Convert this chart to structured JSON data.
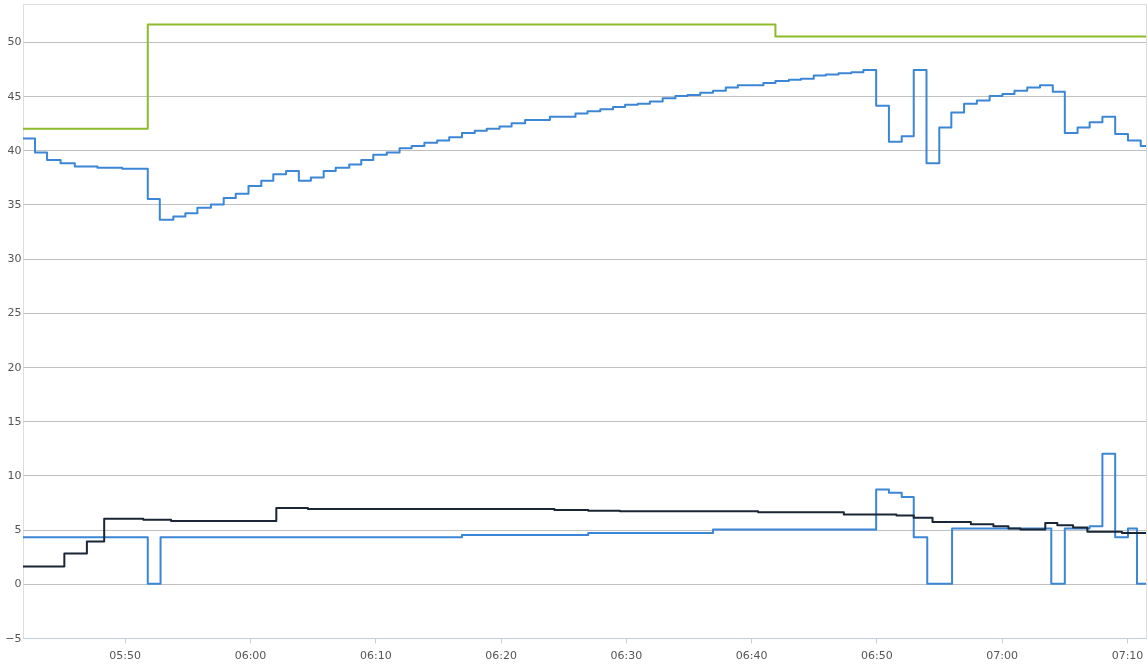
{
  "chart_data": {
    "type": "step",
    "xlim": [
      5.698,
      7.192
    ],
    "ylim": [
      -5,
      53.5
    ],
    "xticks": [
      {
        "value": 5.8333,
        "label": "05:50"
      },
      {
        "value": 6,
        "label": "06:00"
      },
      {
        "value": 6.1667,
        "label": "06:10"
      },
      {
        "value": 6.3333,
        "label": "06:20"
      },
      {
        "value": 6.5,
        "label": "06:30"
      },
      {
        "value": 6.6667,
        "label": "06:40"
      },
      {
        "value": 6.8333,
        "label": "06:50"
      },
      {
        "value": 7,
        "label": "07:00"
      },
      {
        "value": 7.1667,
        "label": "07:10"
      }
    ],
    "yticks": [
      {
        "value": -5,
        "label": "−5"
      },
      0,
      5,
      10,
      15,
      20,
      25,
      30,
      35,
      40,
      45,
      50
    ],
    "grid": "y",
    "line_style": "solid",
    "marker": "none",
    "series": [
      {
        "color": "#8dbb2a",
        "x": [
          5.698,
          5.864,
          6.699,
          7.192
        ],
        "values": [
          42.0,
          51.6,
          50.5,
          50.5
        ]
      },
      {
        "color": "#3c86d6",
        "x": [
          5.698,
          5.714,
          5.73,
          5.748,
          5.767,
          5.797,
          5.83,
          5.864,
          5.88,
          5.898,
          5.914,
          5.93,
          5.948,
          5.965,
          5.981,
          5.998,
          6.015,
          6.031,
          6.048,
          6.065,
          6.081,
          6.098,
          6.114,
          6.132,
          6.148,
          6.164,
          6.182,
          6.199,
          6.215,
          6.232,
          6.249,
          6.265,
          6.282,
          6.299,
          6.315,
          6.332,
          6.348,
          6.366,
          6.382,
          6.399,
          6.433,
          6.449,
          6.466,
          6.483,
          6.499,
          6.516,
          6.532,
          6.549,
          6.566,
          6.582,
          6.599,
          6.616,
          6.633,
          6.649,
          6.683,
          6.699,
          6.717,
          6.733,
          6.75,
          6.766,
          6.783,
          6.8,
          6.816,
          6.833,
          6.85,
          6.867,
          6.883,
          6.9,
          6.917,
          6.933,
          6.95,
          6.967,
          6.984,
          7.001,
          7.017,
          7.034,
          7.051,
          7.068,
          7.084,
          7.101,
          7.117,
          7.134,
          7.151,
          7.168,
          7.185,
          7.192
        ],
        "values": [
          41.1,
          39.8,
          39.1,
          38.8,
          38.5,
          38.4,
          38.3,
          35.5,
          33.6,
          33.9,
          34.2,
          34.7,
          35.0,
          35.6,
          36.0,
          36.7,
          37.2,
          37.8,
          38.1,
          37.2,
          37.5,
          38.1,
          38.4,
          38.7,
          39.1,
          39.6,
          39.8,
          40.2,
          40.4,
          40.7,
          40.9,
          41.2,
          41.6,
          41.8,
          42.0,
          42.2,
          42.5,
          42.8,
          42.8,
          43.1,
          43.4,
          43.6,
          43.8,
          44.0,
          44.2,
          44.3,
          44.5,
          44.8,
          45.0,
          45.1,
          45.3,
          45.5,
          45.8,
          46.0,
          46.2,
          46.4,
          46.5,
          46.6,
          46.9,
          47.0,
          47.1,
          47.2,
          47.4,
          44.1,
          40.8,
          41.3,
          47.4,
          38.8,
          42.1,
          43.5,
          44.3,
          44.6,
          45.0,
          45.2,
          45.5,
          45.8,
          46.0,
          45.4,
          41.6,
          42.1,
          42.6,
          43.1,
          41.5,
          40.9,
          40.4,
          40.4
        ]
      },
      {
        "color": "#3c86d6",
        "x": [
          5.698,
          5.864,
          5.881,
          6.282,
          6.45,
          6.616,
          6.833,
          6.85,
          6.867,
          6.883,
          6.901,
          6.934,
          7.066,
          7.084,
          7.117,
          7.134,
          7.151,
          7.168,
          7.18,
          7.192
        ],
        "values": [
          4.3,
          0,
          4.3,
          4.5,
          4.7,
          5.0,
          8.7,
          8.4,
          8.0,
          4.3,
          0,
          5.1,
          0,
          5.1,
          5.3,
          12.0,
          4.3,
          5.1,
          0,
          0
        ]
      },
      {
        "color": "#1a2535",
        "x": [
          5.698,
          5.753,
          5.783,
          5.806,
          5.858,
          5.895,
          6.035,
          6.077,
          6.405,
          6.45,
          6.492,
          6.676,
          6.79,
          6.86,
          6.883,
          6.908,
          6.959,
          6.989,
          7.009,
          7.025,
          7.058,
          7.074,
          7.095,
          7.114,
          7.16,
          7.192
        ],
        "values": [
          1.6,
          2.8,
          3.9,
          6.0,
          5.9,
          5.8,
          7.0,
          6.9,
          6.8,
          6.75,
          6.7,
          6.6,
          6.4,
          6.3,
          6.1,
          5.7,
          5.5,
          5.3,
          5.1,
          5.0,
          5.6,
          5.4,
          5.2,
          4.8,
          4.7,
          4.7
        ]
      }
    ]
  }
}
